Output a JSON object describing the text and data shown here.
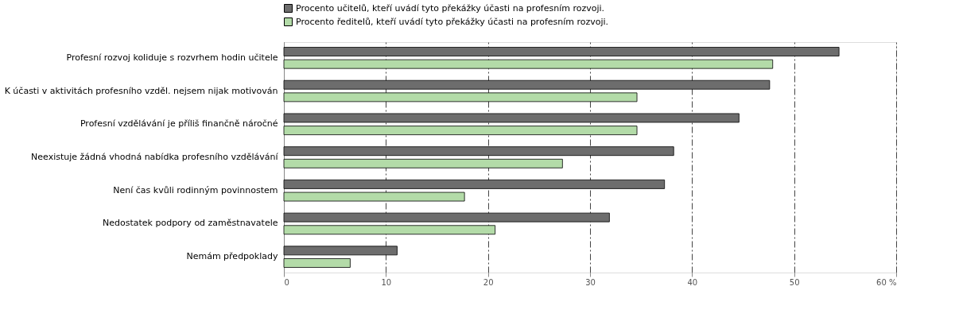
{
  "chart_data": {
    "type": "bar",
    "orientation": "horizontal",
    "categories": [
      "Profesní rozvoj koliduje s rozvrhem hodin učitele",
      "K účasti v aktivitách profesního vzděl. nejsem nijak motivován",
      "Profesní vzdělávání je příliš finančně náročné",
      "Neexistuje žádná vhodná nabídka profesního vzdělávání",
      "Není čas kvůli rodinným povinnostem",
      "Nedostatek podpory od zaměstnavatele",
      "Nemám předpoklady"
    ],
    "series": [
      {
        "name": "Procento učitelů, kteří uvádí tyto překážky účasti na profesním rozvoji.",
        "color": "#6d6d6d",
        "values": [
          54.4,
          47.6,
          44.6,
          38.2,
          37.3,
          31.9,
          11.1
        ]
      },
      {
        "name": "Procento ředitelů, kteří uvádí tyto překážky účasti na profesním rozvoji.",
        "color": "#b3dba8",
        "values": [
          47.9,
          34.6,
          34.6,
          27.3,
          17.7,
          20.7,
          6.5
        ]
      }
    ],
    "xlim": [
      0,
      60
    ],
    "xticks": [
      0,
      10,
      20,
      30,
      40,
      50,
      {
        "value": 60,
        "label": "60 %"
      }
    ],
    "grid": "x",
    "legend": "top"
  }
}
